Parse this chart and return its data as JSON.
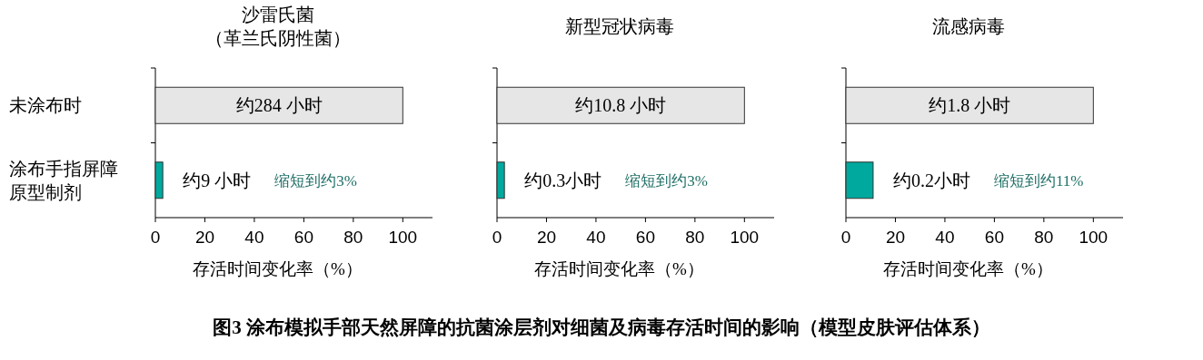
{
  "chart_data": [
    {
      "type": "bar",
      "orientation": "horizontal",
      "title": "沙雷氏菌（革兰氏阴性菌）",
      "xlabel": "存活时间变化率（%）",
      "categories": [
        "未涂布时",
        "涂布手指屏障原型制剂"
      ],
      "values": [
        100,
        3
      ],
      "colors": [
        "#e6e6e6",
        "#00a99d"
      ],
      "value_labels": [
        "约284 小时",
        "约9 小时"
      ],
      "xlim": [
        0,
        112
      ],
      "xticks": [
        0,
        20,
        40,
        60,
        80,
        100
      ],
      "annotations": [
        "缩短到约3%",
        "图3  涂布模拟手部天然屏障的抗菌涂层剂对细菌及病毒存活时间的影响（模型皮肤评估体系）"
      ]
    },
    {
      "type": "bar",
      "orientation": "horizontal",
      "title": "新型冠状病毒",
      "xlabel": "存活时间变化率（%）",
      "categories": [
        "未涂布时",
        "涂布手指屏障原型制剂"
      ],
      "values": [
        100,
        3
      ],
      "colors": [
        "#e6e6e6",
        "#00a99d"
      ],
      "value_labels": [
        "约10.8 小时",
        "约0.3小时"
      ],
      "xlim": [
        0,
        112
      ],
      "xticks": [
        0,
        20,
        40,
        60,
        80,
        100
      ],
      "tick_labels": "x",
      "annotations": [
        "缩短到约3%"
      ]
    },
    {
      "type": "bar",
      "orientation": "horizontal",
      "title": "流感病毒",
      "xlabel": "存活时间变化率（%）",
      "categories": [
        "未涂布时",
        "涂布手指屏障原型制剂"
      ],
      "values": [
        100,
        11
      ],
      "colors": [
        "#e6e6e6",
        "#00a99d"
      ],
      "value_labels": [
        "约1.8 小时",
        "约0.2小时"
      ],
      "xlim": [
        0,
        112
      ],
      "xticks": [
        0,
        20,
        40,
        60,
        80,
        100
      ],
      "tick_labels": "x",
      "annotations": [
        "缩短到约11%"
      ]
    }
  ]
}
